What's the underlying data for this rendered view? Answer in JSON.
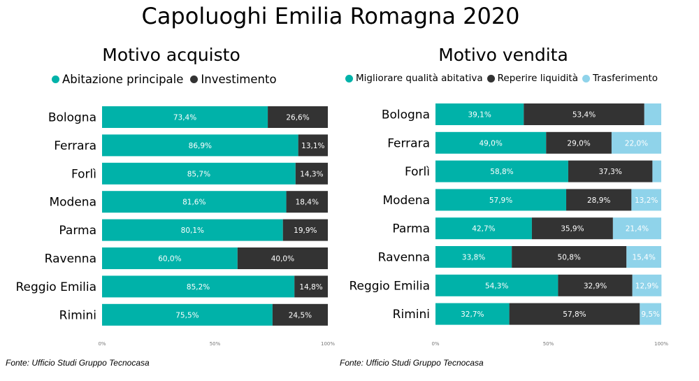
{
  "title": "Capoluoghi Emilia Romagna 2020",
  "chart_data": [
    {
      "type": "bar",
      "orientation": "horizontal",
      "stacked": "100%",
      "title": "Motivo acquisto",
      "categories": [
        "Bologna",
        "Ferrara",
        "Forlì",
        "Modena",
        "Parma",
        "Ravenna",
        "Reggio Emilia",
        "Rimini"
      ],
      "series": [
        {
          "name": "Abitazione principale",
          "color": "#00b2a9",
          "values": [
            73.4,
            86.9,
            85.7,
            81.6,
            80.1,
            60.0,
            85.2,
            75.5
          ],
          "labels": [
            "73,4%",
            "86,9%",
            "85,7%",
            "81,6%",
            "80,1%",
            "60,0%",
            "85,2%",
            "75,5%"
          ]
        },
        {
          "name": "Investimento",
          "color": "#333333",
          "values": [
            26.6,
            13.1,
            14.3,
            18.4,
            19.9,
            40.0,
            14.8,
            24.5
          ],
          "labels": [
            "26,6%",
            "13,1%",
            "14,3%",
            "18,4%",
            "19,9%",
            "40,0%",
            "14,8%",
            "24,5%"
          ]
        }
      ],
      "x_ticks": [
        "0%",
        "50%",
        "100%"
      ],
      "xlim": [
        0,
        100
      ],
      "legend_position": "top",
      "source": "Fonte: Ufficio Studi Gruppo Tecnocasa"
    },
    {
      "type": "bar",
      "orientation": "horizontal",
      "stacked": "100%",
      "title": "Motivo vendita",
      "categories": [
        "Bologna",
        "Ferrara",
        "Forlì",
        "Modena",
        "Parma",
        "Ravenna",
        "Reggio Emilia",
        "Rimini"
      ],
      "series": [
        {
          "name": "Migliorare qualità abitativa",
          "color": "#00b2a9",
          "values": [
            39.1,
            49.0,
            58.8,
            57.9,
            42.7,
            33.8,
            54.3,
            32.7
          ],
          "labels": [
            "39,1%",
            "49,0%",
            "58,8%",
            "57,9%",
            "42,7%",
            "33,8%",
            "54,3%",
            "32,7%"
          ]
        },
        {
          "name": "Reperire liquidità",
          "color": "#333333",
          "values": [
            53.4,
            29.0,
            37.3,
            28.9,
            35.9,
            50.8,
            32.9,
            57.8
          ],
          "labels": [
            "53,4%",
            "29,0%",
            "37,3%",
            "28,9%",
            "35,9%",
            "50,8%",
            "32,9%",
            "57,8%"
          ]
        },
        {
          "name": "Trasferimento",
          "color": "#8fd3ea",
          "values": [
            7.5,
            22.0,
            3.9,
            13.2,
            21.4,
            15.4,
            12.9,
            9.5
          ],
          "labels": [
            "",
            "22,0%",
            "",
            "13,2%",
            "21,4%",
            "15,4%",
            "12,9%",
            "9,5%"
          ]
        }
      ],
      "x_ticks": [
        "0%",
        "50%",
        "100%"
      ],
      "xlim": [
        0,
        100
      ],
      "legend_position": "top",
      "source": "Fonte: Ufficio Studi Gruppo Tecnocasa"
    }
  ]
}
